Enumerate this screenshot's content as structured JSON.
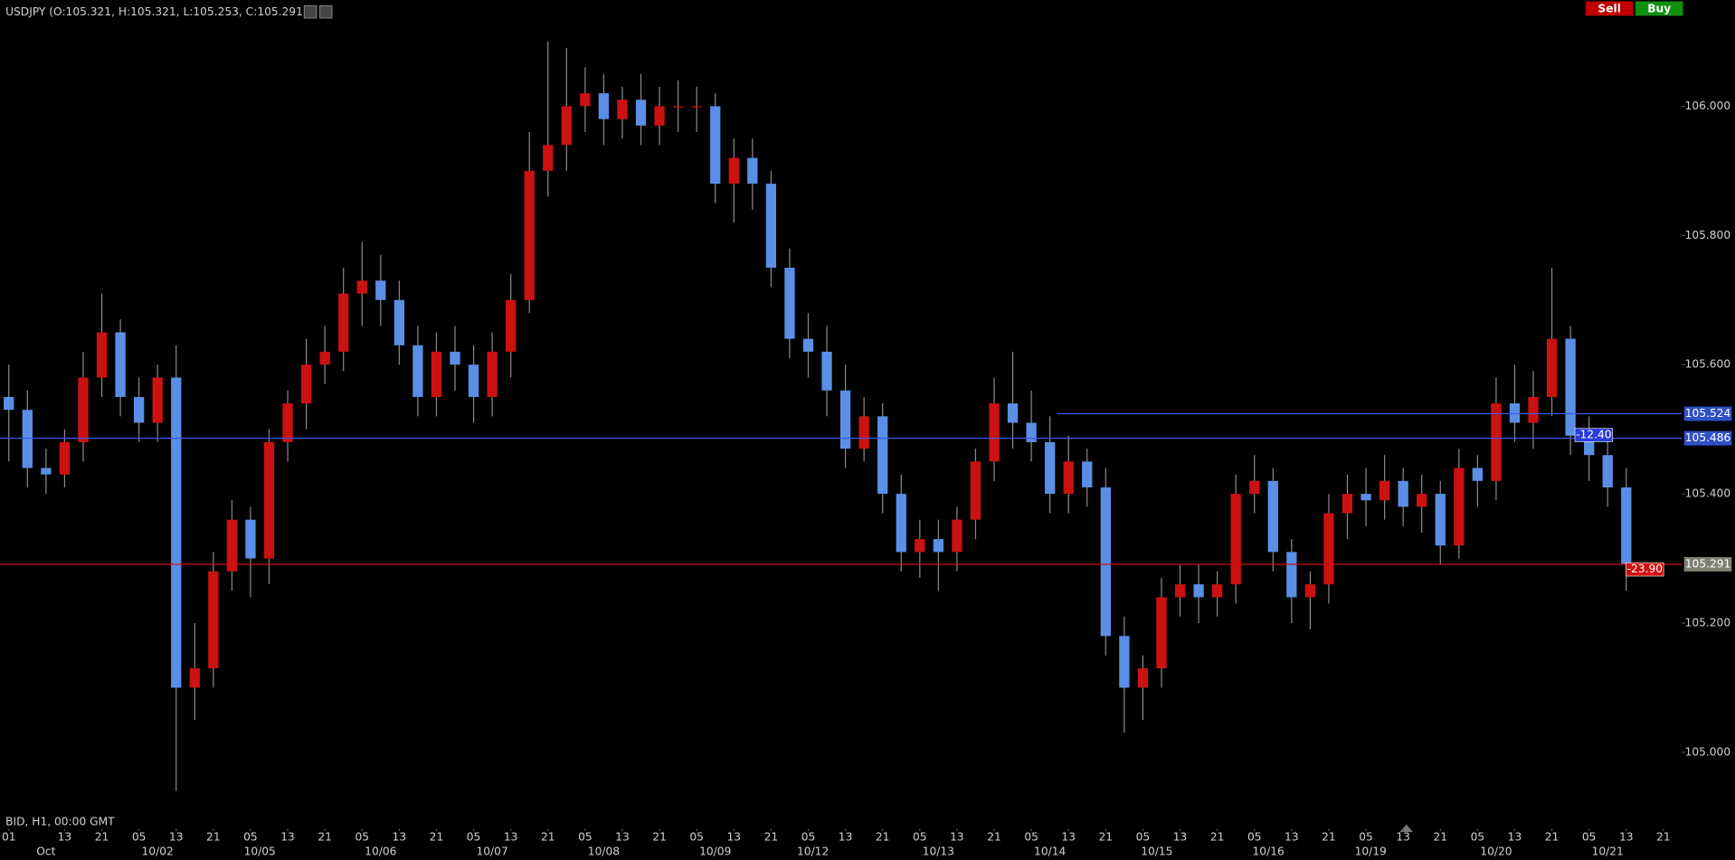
{
  "header": {
    "title": "USDJPY (O:105.321, H:105.321, L:105.253, C:105.291)",
    "buttons": [
      "Sell",
      "Buy"
    ],
    "button_colors": [
      "#c00000",
      "#109010"
    ]
  },
  "chart_data": {
    "type": "candlestick",
    "subtitle": "BID, H1, 00:00 GMT",
    "up_color": "#cc1111",
    "down_color": "#5b8ee6",
    "wick_color": "#888888",
    "x": [
      0,
      4,
      8,
      12,
      16,
      20,
      24,
      28,
      32,
      36,
      40,
      44,
      48,
      52,
      56,
      60,
      64,
      68,
      72,
      76,
      80,
      84,
      88,
      92,
      96,
      100,
      104,
      108,
      112,
      116,
      120,
      124,
      128,
      132,
      136,
      140,
      144,
      148,
      152,
      156,
      160,
      164,
      168,
      172,
      176,
      180,
      184,
      188,
      192,
      196,
      200,
      204,
      208,
      212,
      216,
      220,
      224,
      228,
      232,
      236,
      240,
      244,
      248,
      252,
      256,
      260,
      264,
      268,
      272,
      276,
      280,
      284,
      288,
      292,
      296,
      300,
      304,
      308,
      312,
      316,
      320,
      324,
      328,
      332,
      336,
      340,
      344,
      348
    ],
    "open": [
      105.55,
      105.53,
      105.44,
      105.43,
      105.48,
      105.58,
      105.65,
      105.55,
      105.51,
      105.58,
      105.1,
      105.13,
      105.28,
      105.36,
      105.3,
      105.48,
      105.54,
      105.6,
      105.62,
      105.71,
      105.73,
      105.7,
      105.63,
      105.55,
      105.62,
      105.6,
      105.55,
      105.62,
      105.7,
      105.9,
      105.94,
      106.0,
      106.02,
      105.98,
      106.01,
      105.97,
      106.0,
      106.0,
      106.0,
      105.88,
      105.92,
      105.88,
      105.75,
      105.64,
      105.62,
      105.56,
      105.47,
      105.52,
      105.4,
      105.31,
      105.33,
      105.31,
      105.36,
      105.45,
      105.54,
      105.51,
      105.48,
      105.4,
      105.45,
      105.41,
      105.18,
      105.1,
      105.13,
      105.24,
      105.26,
      105.24,
      105.26,
      105.4,
      105.42,
      105.31,
      105.24,
      105.26,
      105.37,
      105.4,
      105.39,
      105.42,
      105.38,
      105.4,
      105.32,
      105.44,
      105.42,
      105.54,
      105.51,
      105.55,
      105.64,
      105.49,
      105.46,
      105.41
    ],
    "high": [
      105.6,
      105.56,
      105.47,
      105.5,
      105.62,
      105.71,
      105.67,
      105.58,
      105.6,
      105.63,
      105.2,
      105.31,
      105.39,
      105.38,
      105.5,
      105.56,
      105.64,
      105.66,
      105.75,
      105.79,
      105.77,
      105.73,
      105.66,
      105.65,
      105.66,
      105.63,
      105.65,
      105.74,
      105.96,
      106.1,
      106.09,
      106.06,
      106.05,
      106.03,
      106.05,
      106.03,
      106.04,
      106.03,
      106.02,
      105.95,
      105.95,
      105.9,
      105.78,
      105.68,
      105.66,
      105.6,
      105.55,
      105.54,
      105.43,
      105.36,
      105.36,
      105.38,
      105.47,
      105.58,
      105.62,
      105.56,
      105.52,
      105.49,
      105.47,
      105.44,
      105.21,
      105.15,
      105.27,
      105.29,
      105.29,
      105.28,
      105.43,
      105.46,
      105.44,
      105.33,
      105.28,
      105.4,
      105.43,
      105.44,
      105.46,
      105.44,
      105.43,
      105.42,
      105.47,
      105.46,
      105.58,
      105.6,
      105.59,
      105.75,
      105.66,
      105.52,
      105.49,
      105.44
    ],
    "low": [
      105.45,
      105.41,
      105.4,
      105.41,
      105.45,
      105.55,
      105.52,
      105.48,
      105.48,
      104.94,
      105.05,
      105.1,
      105.25,
      105.24,
      105.26,
      105.45,
      105.5,
      105.57,
      105.59,
      105.66,
      105.66,
      105.6,
      105.52,
      105.52,
      105.56,
      105.51,
      105.52,
      105.58,
      105.68,
      105.86,
      105.9,
      105.96,
      105.94,
      105.95,
      105.94,
      105.94,
      105.96,
      105.96,
      105.85,
      105.82,
      105.84,
      105.72,
      105.61,
      105.58,
      105.52,
      105.44,
      105.45,
      105.37,
      105.28,
      105.27,
      105.25,
      105.28,
      105.33,
      105.42,
      105.47,
      105.45,
      105.37,
      105.37,
      105.38,
      105.15,
      105.03,
      105.05,
      105.1,
      105.21,
      105.2,
      105.21,
      105.23,
      105.37,
      105.28,
      105.2,
      105.19,
      105.23,
      105.33,
      105.35,
      105.36,
      105.35,
      105.34,
      105.29,
      105.3,
      105.38,
      105.39,
      105.48,
      105.47,
      105.52,
      105.46,
      105.42,
      105.38,
      105.25
    ],
    "close": [
      105.53,
      105.44,
      105.43,
      105.48,
      105.58,
      105.65,
      105.55,
      105.51,
      105.58,
      105.1,
      105.13,
      105.28,
      105.36,
      105.3,
      105.48,
      105.54,
      105.6,
      105.62,
      105.71,
      105.73,
      105.7,
      105.63,
      105.55,
      105.62,
      105.6,
      105.55,
      105.62,
      105.7,
      105.9,
      105.94,
      106.0,
      106.02,
      105.98,
      106.01,
      105.97,
      106.0,
      106.0,
      106.0,
      105.88,
      105.92,
      105.88,
      105.75,
      105.64,
      105.62,
      105.56,
      105.47,
      105.52,
      105.4,
      105.31,
      105.33,
      105.31,
      105.36,
      105.45,
      105.54,
      105.51,
      105.48,
      105.4,
      105.45,
      105.41,
      105.18,
      105.1,
      105.13,
      105.24,
      105.26,
      105.24,
      105.26,
      105.4,
      105.42,
      105.31,
      105.24,
      105.26,
      105.37,
      105.4,
      105.39,
      105.42,
      105.38,
      105.4,
      105.32,
      105.44,
      105.42,
      105.54,
      105.51,
      105.55,
      105.64,
      105.49,
      105.46,
      105.41,
      105.291
    ],
    "xlim": [
      -1.9,
      356.4
    ],
    "ylim": [
      104.897,
      106.164
    ],
    "yticks": [
      {
        "value": 105.0,
        "label": "105.000"
      },
      {
        "value": 105.2,
        "label": "105.200"
      },
      {
        "value": 105.4,
        "label": "105.400"
      },
      {
        "value": 105.6,
        "label": "105.600"
      },
      {
        "value": 105.8,
        "label": "105.800"
      },
      {
        "value": 106.0,
        "label": "106.000"
      }
    ],
    "xticks": [
      {
        "value": 0,
        "label": "01"
      },
      {
        "value": 12,
        "label": "13"
      },
      {
        "value": 20,
        "label": "21"
      },
      {
        "value": 28,
        "label": "05"
      },
      {
        "value": 36,
        "label": "13"
      },
      {
        "value": 44,
        "label": "21"
      },
      {
        "value": 52,
        "label": "05"
      },
      {
        "value": 60,
        "label": "13"
      },
      {
        "value": 68,
        "label": "21"
      },
      {
        "value": 76,
        "label": "05"
      },
      {
        "value": 84,
        "label": "13"
      },
      {
        "value": 92,
        "label": "21"
      },
      {
        "value": 100,
        "label": "05"
      },
      {
        "value": 108,
        "label": "13"
      },
      {
        "value": 116,
        "label": "21"
      },
      {
        "value": 124,
        "label": "05"
      },
      {
        "value": 132,
        "label": "13"
      },
      {
        "value": 140,
        "label": "21"
      },
      {
        "value": 148,
        "label": "05"
      },
      {
        "value": 156,
        "label": "13"
      },
      {
        "value": 164,
        "label": "21"
      },
      {
        "value": 172,
        "label": "05"
      },
      {
        "value": 180,
        "label": "13"
      },
      {
        "value": 188,
        "label": "21"
      },
      {
        "value": 196,
        "label": "05"
      },
      {
        "value": 204,
        "label": "13"
      },
      {
        "value": 212,
        "label": "21"
      },
      {
        "value": 220,
        "label": "05"
      },
      {
        "value": 228,
        "label": "13"
      },
      {
        "value": 236,
        "label": "21"
      },
      {
        "value": 244,
        "label": "05"
      },
      {
        "value": 252,
        "label": "13"
      },
      {
        "value": 260,
        "label": "21"
      },
      {
        "value": 268,
        "label": "05"
      },
      {
        "value": 276,
        "label": "13"
      },
      {
        "value": 284,
        "label": "21"
      },
      {
        "value": 292,
        "label": "05"
      },
      {
        "value": 300,
        "label": "13"
      },
      {
        "value": 308,
        "label": "21"
      },
      {
        "value": 316,
        "label": "05"
      },
      {
        "value": 324,
        "label": "13"
      },
      {
        "value": 332,
        "label": "21"
      },
      {
        "value": 340,
        "label": "05"
      },
      {
        "value": 348,
        "label": "13"
      },
      {
        "value": 356,
        "label": "21"
      }
    ],
    "date_ticks": [
      {
        "value": 8,
        "label": "Oct"
      },
      {
        "value": 32,
        "label": "10/02"
      },
      {
        "value": 54,
        "label": "10/05"
      },
      {
        "value": 80,
        "label": "10/06"
      },
      {
        "value": 104,
        "label": "10/07"
      },
      {
        "value": 128,
        "label": "10/08"
      },
      {
        "value": 152,
        "label": "10/09"
      },
      {
        "value": 173,
        "label": "10/12"
      },
      {
        "value": 200,
        "label": "10/13"
      },
      {
        "value": 224,
        "label": "10/14"
      },
      {
        "value": 247,
        "label": "10/15"
      },
      {
        "value": 271,
        "label": "10/16"
      },
      {
        "value": 293,
        "label": "10/19"
      },
      {
        "value": 320,
        "label": "10/20"
      },
      {
        "value": 344,
        "label": "10/21"
      }
    ],
    "levels": [
      {
        "value": 105.524,
        "color": "#3a5ae8",
        "box": "#3050c8",
        "x_start": 225.5
      },
      {
        "value": 105.486,
        "color": "#3a5ae8",
        "box": "#3050c8"
      },
      {
        "value": 105.291,
        "color": "#cc1111",
        "box": "#808070"
      }
    ],
    "annotations": [
      {
        "text": "-12.40",
        "x": 341,
        "y": 105.491,
        "color": "#2a3ee0"
      },
      {
        "text": "-23.90",
        "x": 352,
        "y": 105.283,
        "color": "#d01010"
      }
    ]
  }
}
